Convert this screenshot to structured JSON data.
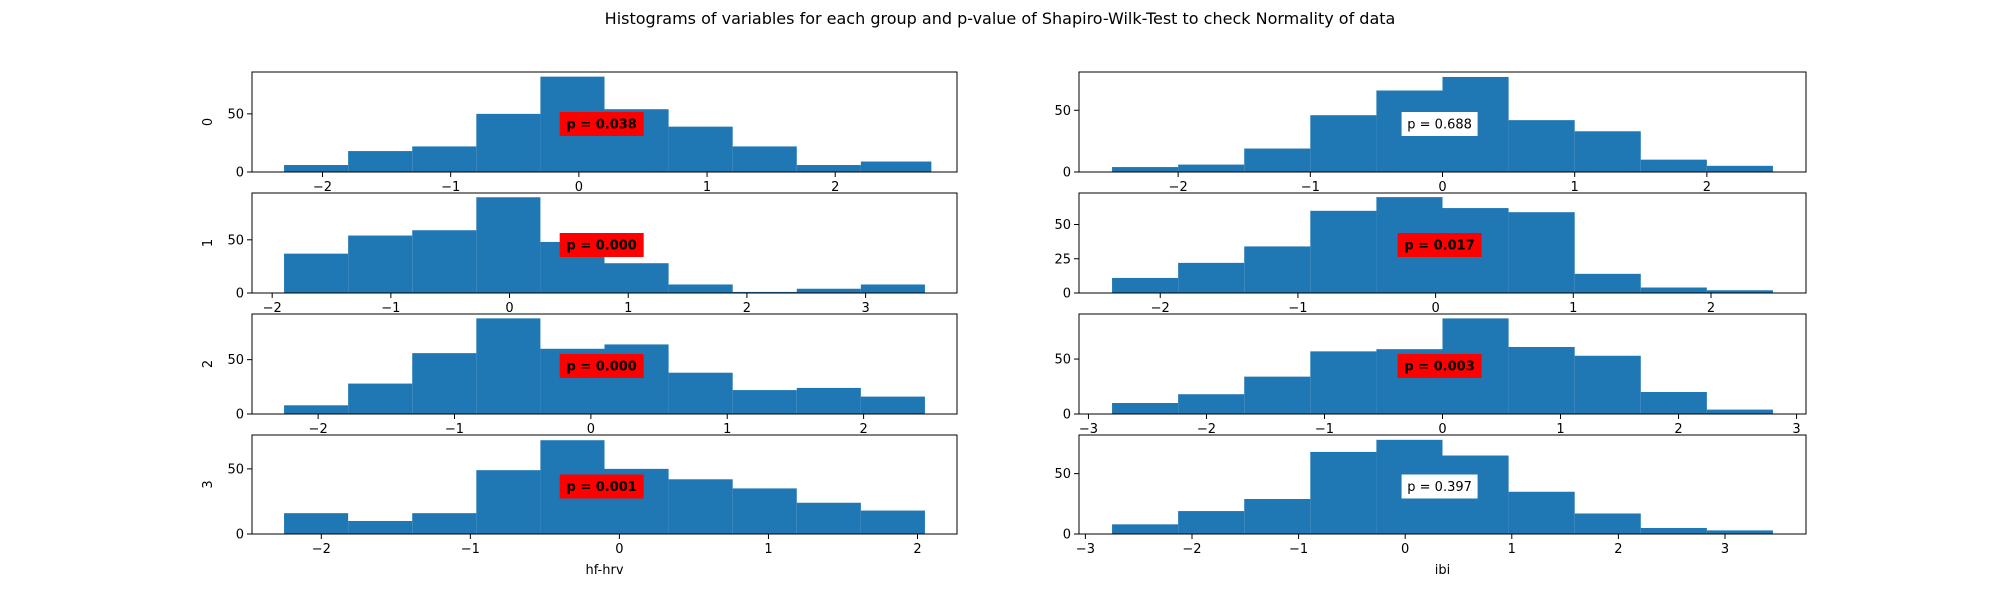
{
  "figure": {
    "title": "Histograms of variables for each group and p-value of Shapiro-Wilk-Test to check Normality of data",
    "bar_color": "#1f77b4",
    "significant_box_color": "#ff0000",
    "nonsignificant_box_color": "#ffffff"
  },
  "chart_data": [
    {
      "type": "bar",
      "variable": "hf-hrv",
      "group_label": "0",
      "bin_edges": [
        -2.3,
        -1.8,
        -1.3,
        -0.8,
        -0.3,
        0.2,
        0.7,
        1.2,
        1.7,
        2.2,
        2.75
      ],
      "counts": [
        6,
        18,
        22,
        50,
        82,
        54,
        39,
        22,
        6,
        9
      ],
      "xlim": [
        -2.55,
        2.95
      ],
      "ylim": [
        0,
        86
      ],
      "xticks": [
        -2,
        -1,
        0,
        1,
        2
      ],
      "yticks": [
        0,
        50
      ],
      "p_value": "p = 0.038",
      "significant": true,
      "xlabel": "",
      "ylabel": "0"
    },
    {
      "type": "bar",
      "variable": "ibi",
      "group_label": "0",
      "bin_edges": [
        -2.5,
        -2.0,
        -1.5,
        -1.0,
        -0.5,
        0.0,
        0.5,
        1.0,
        1.5,
        2.0,
        2.5
      ],
      "counts": [
        4,
        6,
        19,
        46,
        66,
        77,
        42,
        33,
        10,
        5
      ],
      "xlim": [
        -2.75,
        2.75
      ],
      "ylim": [
        0,
        81
      ],
      "xticks": [
        -2,
        -1,
        0,
        1,
        2
      ],
      "yticks": [
        0,
        50
      ],
      "p_value": "p = 0.688",
      "significant": false,
      "xlabel": "",
      "ylabel": ""
    },
    {
      "type": "bar",
      "variable": "hf-hrv",
      "group_label": "1",
      "bin_edges": [
        -1.9,
        -1.36,
        -0.82,
        -0.28,
        0.26,
        0.8,
        1.34,
        1.88,
        2.42,
        2.96,
        3.5
      ],
      "counts": [
        37,
        54,
        59,
        90,
        48,
        28,
        8,
        1,
        4,
        8
      ],
      "xlim": [
        -2.17,
        3.77
      ],
      "ylim": [
        0,
        94
      ],
      "xticks": [
        -2,
        -1,
        0,
        1,
        2,
        3
      ],
      "yticks": [
        0,
        50
      ],
      "p_value": "p = 0.000",
      "significant": true,
      "xlabel": "",
      "ylabel": "1"
    },
    {
      "type": "bar",
      "variable": "ibi",
      "group_label": "1",
      "bin_edges": [
        -2.35,
        -1.87,
        -1.39,
        -0.91,
        -0.43,
        0.05,
        0.53,
        1.01,
        1.49,
        1.97,
        2.45
      ],
      "counts": [
        11,
        22,
        34,
        60,
        70,
        62,
        59,
        14,
        4,
        2
      ],
      "xlim": [
        -2.59,
        2.69
      ],
      "ylim": [
        0,
        73
      ],
      "xticks": [
        -2,
        -1,
        0,
        1,
        2
      ],
      "yticks": [
        0,
        25,
        50
      ],
      "p_value": "p = 0.017",
      "significant": true,
      "xlabel": "",
      "ylabel": ""
    },
    {
      "type": "bar",
      "variable": "hf-hrv",
      "group_label": "2",
      "bin_edges": [
        -2.25,
        -1.78,
        -1.31,
        -0.84,
        -0.37,
        0.1,
        0.57,
        1.04,
        1.51,
        1.98,
        2.45
      ],
      "counts": [
        8,
        28,
        56,
        88,
        60,
        64,
        38,
        22,
        24,
        16
      ],
      "xlim": [
        -2.485,
        2.685
      ],
      "ylim": [
        0,
        92
      ],
      "xticks": [
        -2,
        -1,
        0,
        1,
        2
      ],
      "yticks": [
        0,
        50
      ],
      "p_value": "p = 0.000",
      "significant": true,
      "xlabel": "",
      "ylabel": "2"
    },
    {
      "type": "bar",
      "variable": "ibi",
      "group_label": "2",
      "bin_edges": [
        -2.8,
        -2.24,
        -1.68,
        -1.12,
        -0.56,
        0.0,
        0.56,
        1.12,
        1.68,
        2.24,
        2.8
      ],
      "counts": [
        10,
        18,
        34,
        57,
        59,
        87,
        61,
        53,
        20,
        4
      ],
      "xlim": [
        -3.08,
        3.08
      ],
      "ylim": [
        0,
        91
      ],
      "xticks": [
        -3,
        -2,
        -1,
        0,
        1,
        2,
        3
      ],
      "yticks": [
        0,
        50
      ],
      "p_value": "p = 0.003",
      "significant": true,
      "xlabel": "",
      "ylabel": ""
    },
    {
      "type": "bar",
      "variable": "hf-hrv",
      "group_label": "3",
      "bin_edges": [
        -2.25,
        -1.82,
        -1.39,
        -0.96,
        -0.53,
        -0.1,
        0.33,
        0.76,
        1.19,
        1.62,
        2.05
      ],
      "counts": [
        16,
        10,
        16,
        49,
        72,
        50,
        42,
        35,
        24,
        18
      ],
      "xlim": [
        -2.465,
        2.265
      ],
      "ylim": [
        0,
        76
      ],
      "xticks": [
        -2,
        -1,
        0,
        1,
        2
      ],
      "yticks": [
        0,
        50
      ],
      "p_value": "p = 0.001",
      "significant": true,
      "xlabel": "hf-hrv",
      "ylabel": "3"
    },
    {
      "type": "bar",
      "variable": "ibi",
      "group_label": "3",
      "bin_edges": [
        -2.75,
        -2.13,
        -1.51,
        -0.89,
        -0.27,
        0.35,
        0.97,
        1.59,
        2.21,
        2.83,
        3.45
      ],
      "counts": [
        8,
        19,
        29,
        68,
        78,
        65,
        35,
        17,
        5,
        3
      ],
      "xlim": [
        -3.06,
        3.76
      ],
      "ylim": [
        0,
        82
      ],
      "xticks": [
        -3,
        -2,
        -1,
        0,
        1,
        2,
        3
      ],
      "yticks": [
        0,
        50
      ],
      "p_value": "p = 0.397",
      "significant": false,
      "xlabel": "ibi",
      "ylabel": ""
    }
  ]
}
